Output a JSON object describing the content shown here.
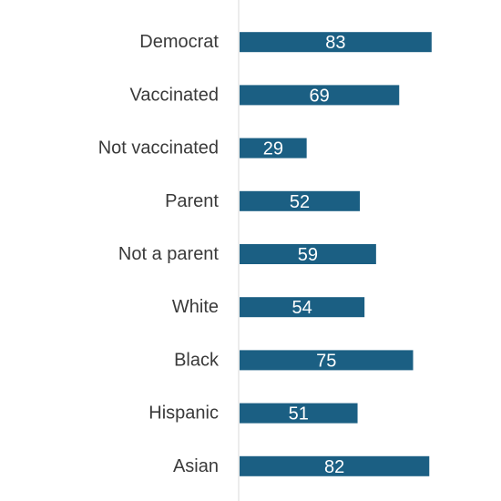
{
  "colors": {
    "bar": "#1b5f83",
    "axis": "#d9d9d9",
    "label": "#3a3a3a",
    "value_text": "#ffffff"
  },
  "chart_data": {
    "type": "bar",
    "orientation": "horizontal",
    "title": "",
    "xlabel": "",
    "ylabel": "",
    "xlim": [
      0,
      100
    ],
    "grid": false,
    "categories": [
      "",
      "Democrat",
      "Vaccinated",
      "Not vaccinated",
      "Parent",
      "Not a parent",
      "White",
      "Black",
      "Hispanic",
      "Asian"
    ],
    "values": [
      null,
      83,
      69,
      29,
      52,
      59,
      54,
      75,
      51,
      82
    ],
    "data_labels": [
      "",
      "83",
      "69",
      "29",
      "52",
      "59",
      "54",
      "75",
      "51",
      "82"
    ]
  }
}
